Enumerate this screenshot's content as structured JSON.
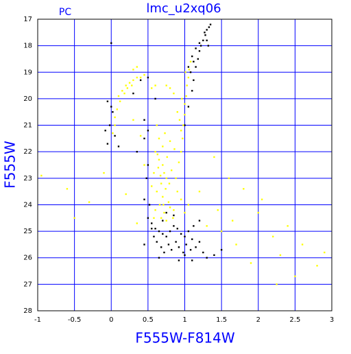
{
  "chart_data": {
    "type": "scatter",
    "title": "lmc_u2xq06",
    "annotation": "PC",
    "x_label": "F555W-F814W",
    "y_label": "F555W",
    "xlim": [
      -1,
      3
    ],
    "xticks": [
      -1,
      -0.5,
      0,
      0.5,
      1,
      1.5,
      2,
      2.5,
      3
    ],
    "ylim": [
      28,
      17
    ],
    "yticks": [
      17,
      18,
      19,
      20,
      21,
      22,
      23,
      24,
      25,
      26,
      27,
      28
    ],
    "grid": true,
    "grid_color": "#0000ff",
    "series": [
      {
        "color": "#000000",
        "x": [
          1.0,
          1.05,
          1.1,
          1.12,
          1.15,
          1.18,
          1.2,
          1.22,
          1.25,
          1.28,
          1.3,
          1.33,
          1.35,
          1.12,
          1.08,
          1.2,
          1.27,
          1.15,
          1.1,
          1.3,
          1.32,
          1.05,
          -0.05,
          0.0,
          0.02,
          -0.02,
          0.05,
          -0.08,
          0.1,
          -0.05,
          0.0,
          0.3,
          0.4,
          0.5,
          0.45,
          0.35,
          0.5,
          0.45,
          0.6,
          0.5,
          0.55,
          0.6,
          0.65,
          0.7,
          0.75,
          0.8,
          0.85,
          0.9,
          0.95,
          1.0,
          1.05,
          1.1,
          0.58,
          0.62,
          0.68,
          0.72,
          0.78,
          0.82,
          0.88,
          0.92,
          0.98,
          1.02,
          1.08,
          1.15,
          1.2,
          0.55,
          0.7,
          0.85,
          0.75,
          1.25,
          1.3,
          1.4,
          1.5,
          1.12,
          0.52,
          0.48,
          0.5,
          0.45,
          0.65,
          0.92,
          1.0,
          1.1,
          1.2,
          0.45
        ],
        "values": [
          21.0,
          20.3,
          19.7,
          19.3,
          18.8,
          18.5,
          18.2,
          18.0,
          17.8,
          17.6,
          17.4,
          17.3,
          17.2,
          18.6,
          19.0,
          17.9,
          17.5,
          18.1,
          18.4,
          17.8,
          18.0,
          18.8,
          20.1,
          20.3,
          20.5,
          21.0,
          21.4,
          21.2,
          21.8,
          21.7,
          17.9,
          19.8,
          19.3,
          19.2,
          21.5,
          22.0,
          21.2,
          20.8,
          20.0,
          24.5,
          24.7,
          24.9,
          25.0,
          25.1,
          25.2,
          25.0,
          24.8,
          24.9,
          25.1,
          25.2,
          25.0,
          25.3,
          25.2,
          25.4,
          25.6,
          25.8,
          25.5,
          25.7,
          25.4,
          25.6,
          25.8,
          25.5,
          25.7,
          25.6,
          25.4,
          24.9,
          24.6,
          24.4,
          24.3,
          25.8,
          26.0,
          25.9,
          25.7,
          24.8,
          24.0,
          23.0,
          22.5,
          23.8,
          26.0,
          26.1,
          25.9,
          26.1,
          24.6,
          25.5
        ]
      },
      {
        "color": "#ffff00",
        "x": [
          0.1,
          0.15,
          0.2,
          0.25,
          0.3,
          0.35,
          0.4,
          0.45,
          0.12,
          0.18,
          0.08,
          0.05,
          0.22,
          0.28,
          0.3,
          0.35,
          0.55,
          0.6,
          0.05,
          0.02,
          0.95,
          0.97,
          0.98,
          1.0,
          1.0,
          1.02,
          1.03,
          1.05,
          1.06,
          1.08,
          0.95,
          0.93,
          0.96,
          1.01,
          0.9,
          0.85,
          0.8,
          0.75,
          0.6,
          0.65,
          0.7,
          0.72,
          0.75,
          0.68,
          0.62,
          0.7,
          0.78,
          0.8,
          0.66,
          0.72,
          0.85,
          0.9,
          0.58,
          0.64,
          0.76,
          0.82,
          0.88,
          0.92,
          0.55,
          0.6,
          0.68,
          0.75,
          0.7,
          0.65,
          0.62,
          0.73,
          0.8,
          0.86,
          0.95,
          1.0,
          1.05,
          0.58,
          0.74,
          0.79,
          0.67,
          0.71,
          0.63,
          0.84,
          -0.95,
          -0.6,
          -0.3,
          -0.1,
          0.2,
          0.35,
          0.45,
          1.4,
          1.6,
          1.8,
          2.0,
          2.2,
          2.4,
          2.6,
          2.8,
          2.9,
          1.3,
          1.5,
          1.7,
          2.3,
          1.9,
          2.5,
          2.25,
          1.2,
          1.45,
          0.4,
          0.3,
          -0.5,
          2.05,
          1.65
        ],
        "values": [
          19.9,
          19.7,
          19.5,
          19.4,
          19.3,
          19.2,
          19.2,
          19.1,
          20.1,
          19.8,
          20.4,
          20.7,
          19.6,
          19.5,
          18.9,
          18.8,
          19.6,
          19.5,
          21.0,
          21.3,
          22.0,
          21.5,
          21.0,
          20.6,
          20.2,
          19.9,
          19.5,
          19.2,
          18.9,
          18.6,
          21.2,
          20.8,
          20.0,
          19.0,
          20.5,
          19.8,
          19.6,
          19.5,
          22.0,
          22.3,
          22.5,
          22.8,
          23.0,
          23.2,
          23.5,
          23.7,
          23.9,
          24.1,
          24.0,
          24.3,
          24.2,
          23.5,
          22.8,
          22.6,
          22.2,
          22.7,
          23.0,
          22.4,
          23.3,
          24.2,
          24.5,
          24.6,
          21.8,
          21.5,
          21.0,
          21.3,
          21.6,
          21.9,
          23.8,
          24.3,
          24.0,
          24.5,
          23.4,
          23.2,
          22.9,
          24.0,
          22.1,
          24.5,
          22.9,
          23.4,
          23.9,
          22.8,
          23.6,
          24.7,
          22.5,
          22.2,
          23.0,
          23.4,
          24.3,
          25.2,
          24.8,
          25.5,
          26.3,
          25.8,
          24.8,
          25.0,
          25.5,
          25.9,
          26.2,
          26.7,
          27.0,
          23.5,
          24.2,
          21.4,
          20.8,
          24.5,
          23.8,
          24.6
        ]
      }
    ]
  }
}
